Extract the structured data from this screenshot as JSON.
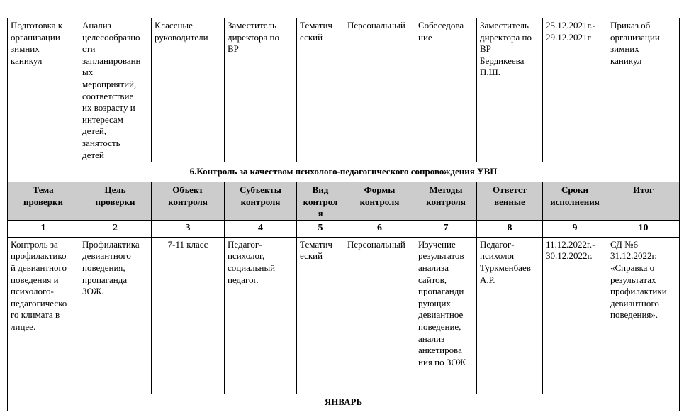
{
  "row_prev": [
    "Подготовка к\nорганизации\nзимних\nканикул",
    "Анализ\nцелесообразно\nсти\nзапланированн\nых\nмероприятий,\nсоответствие\nих возрасту и\nинтересам\nдетей,\nзанятость\nдетей",
    "Классные\nруководители",
    "Заместитель\nдиректора по\nВР",
    "Тематич\nеский",
    "Персональный",
    "Собеседова\nние",
    "Заместитель\nдиректора по\nВР\nБердикеева\nП.Ш.",
    "25.12.2021г.-\n29.12.2021г",
    "Приказ об\nорганизации\nзимних\nканикул"
  ],
  "section_title": "6.Контроль за качеством психолого-педагогического сопровождения УВП",
  "headers": [
    "Тема\nпроверки",
    "Цель\nпроверки",
    "Объект\nконтроля",
    "Субъекты\nконтроля",
    "Вид\nконтрол\nя",
    "Формы\nконтроля",
    "Методы\nконтроля",
    "Ответст\nвенные",
    "Сроки\nисполнения",
    "Итог"
  ],
  "numbers": [
    "1",
    "2",
    "3",
    "4",
    "5",
    "6",
    "7",
    "8",
    "9",
    "10"
  ],
  "row_main": [
    "Контроль за\nпрофилактико\nй девиантного\nповедения и\nпсихолого-\nпедагогическо\nго климата в\nлицее.",
    "Профилактика\nдевиантного\nповедения,\nпропаганда\nЗОЖ.",
    "7-11 класс",
    "Педагог-\nпсихолог,\nсоциальный\nпедагог.",
    "Тематич\nеский",
    "Персональный",
    "Изучение\nрезультатов\nанализа\nсайтов,\nпропаганди\nрующих\nдевиантное\nповедение,\nанализ\nанкетирова\nния по ЗОЖ",
    "Педагог-\nпсихолог\nТуркменбаев\nА.Р.",
    "11.12.2022г.-\n30.12.2022г.",
    "СД №6\n31.12.2022г.\n«Справка о\nрезультатах\nпрофилактики\nдевиантного\nповедения»."
  ],
  "month": "ЯНВАРЬ",
  "colors": {
    "header_bg": "#cccccc",
    "border": "#000000"
  }
}
